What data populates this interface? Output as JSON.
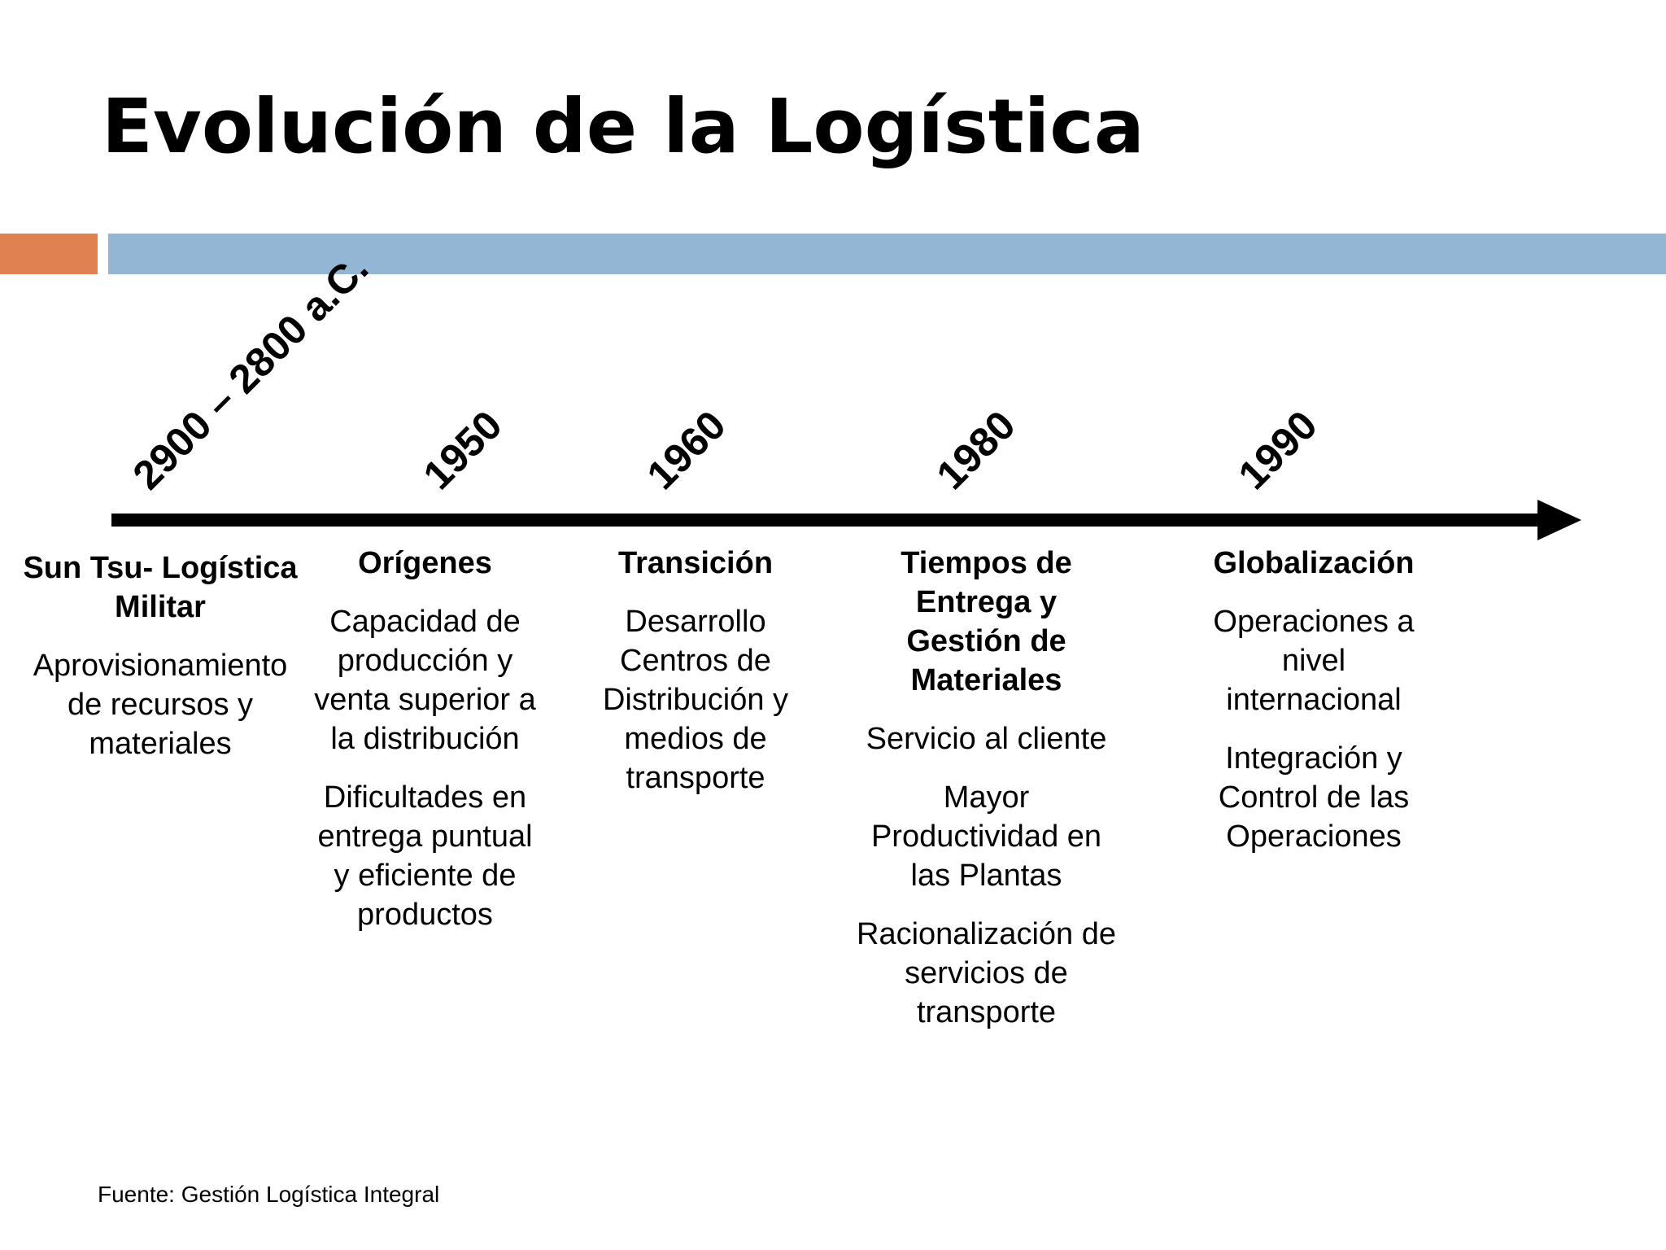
{
  "title": "Evolución de la Logística",
  "colors": {
    "accent_orange": "#e0824f",
    "band_blue": "#93b6d4",
    "timeline": "#000000"
  },
  "timeline": [
    {
      "year": "2900 – 2800 a.C.",
      "heading": "Sun Tsu- Logística Militar",
      "items": [
        "Aprovisionamiento de recursos y materiales"
      ]
    },
    {
      "year": "1950",
      "heading": "Orígenes",
      "items": [
        "Capacidad de producción y venta superior a la distribución",
        "Dificultades en entrega puntual y eficiente de productos"
      ]
    },
    {
      "year": "1960",
      "heading": "Transición",
      "items": [
        "Desarrollo Centros de Distribución y medios de transporte"
      ]
    },
    {
      "year": "1980",
      "heading": "Tiempos de Entrega y Gestión de Materiales",
      "items": [
        "Servicio al cliente",
        "Mayor Productividad en las Plantas",
        "Racionalización de servicios de transporte"
      ]
    },
    {
      "year": "1990",
      "heading": "Globalización",
      "items": [
        "Operaciones a nivel internacional",
        "Integración y Control de las Operaciones"
      ]
    }
  ],
  "source": "Fuente: Gestión Logística Integral"
}
